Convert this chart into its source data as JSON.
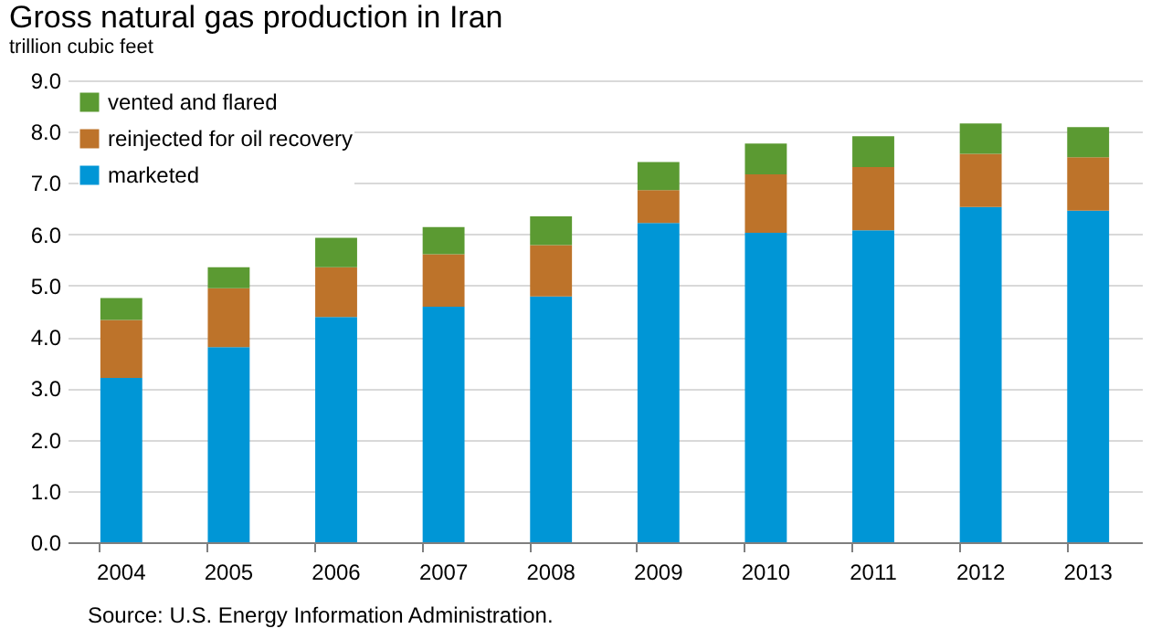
{
  "chart_data": {
    "type": "bar",
    "title": "Gross natural gas production in Iran",
    "subtitle": "trillion cubic feet",
    "stacked": true,
    "categories": [
      "2004",
      "2005",
      "2006",
      "2007",
      "2008",
      "2009",
      "2010",
      "2011",
      "2012",
      "2013"
    ],
    "series": [
      {
        "name": "marketed",
        "color": "#0096d6",
        "values": [
          3.2,
          3.8,
          4.39,
          4.59,
          4.79,
          6.22,
          6.03,
          6.08,
          6.53,
          6.46
        ]
      },
      {
        "name": "reinjected for oil recovery",
        "color": "#bd732a",
        "values": [
          1.13,
          1.15,
          0.97,
          1.02,
          1.0,
          0.64,
          1.14,
          1.23,
          1.04,
          1.04
        ]
      },
      {
        "name": "vented and flared",
        "color": "#5b9a32",
        "values": [
          0.43,
          0.41,
          0.57,
          0.53,
          0.56,
          0.55,
          0.6,
          0.6,
          0.59,
          0.59
        ]
      }
    ],
    "ylim": [
      0,
      9
    ],
    "yticks": [
      {
        "value": 0,
        "label": "0.0"
      },
      {
        "value": 1,
        "label": "1.0"
      },
      {
        "value": 2,
        "label": "2.0"
      },
      {
        "value": 3,
        "label": "3.0"
      },
      {
        "value": 4,
        "label": "4.0"
      },
      {
        "value": 5,
        "label": "5.0"
      },
      {
        "value": 6,
        "label": "6.0"
      },
      {
        "value": 7,
        "label": "7.0"
      },
      {
        "value": 8,
        "label": "8.0"
      },
      {
        "value": 9,
        "label": "9.0"
      }
    ],
    "grid": "y",
    "legend": "top left",
    "annotations": [
      "Source: U.S. Energy Information Administration."
    ]
  }
}
